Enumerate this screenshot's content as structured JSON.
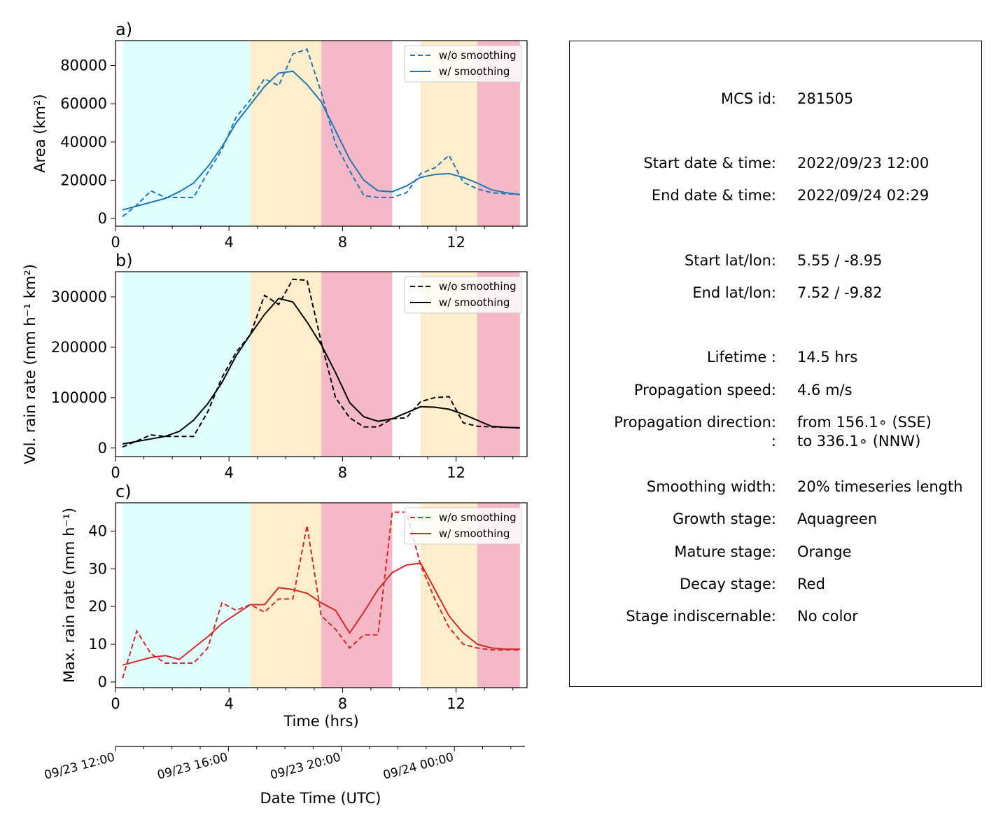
{
  "figure": {
    "bands": [
      {
        "start": 0.25,
        "end": 4.75,
        "stage": "growth"
      },
      {
        "start": 4.75,
        "end": 7.25,
        "stage": "mature"
      },
      {
        "start": 7.25,
        "end": 9.75,
        "stage": "decay"
      },
      {
        "start": 10.75,
        "end": 12.75,
        "stage": "mature"
      },
      {
        "start": 12.75,
        "end": 14.25,
        "stage": "decay"
      }
    ],
    "stage_colors": {
      "growth": "#e0ffff",
      "mature": "#ffeecc",
      "decay": "#f4b8c6"
    },
    "xlabel": "Time (hrs)",
    "date_axis": {
      "label": "Date Time (UTC)",
      "ticks": [
        {
          "t": 0,
          "label": "09/23 12:00"
        },
        {
          "t": 4,
          "label": "09/23 16:00"
        },
        {
          "t": 8,
          "label": "09/23 20:00"
        },
        {
          "t": 12,
          "label": "09/24 00:00"
        }
      ]
    }
  },
  "chart_data": [
    {
      "type": "line",
      "panel": "a)",
      "ylabel": "Area  (km²)",
      "xlim": [
        0,
        14.5
      ],
      "ylim": [
        -4000,
        93000
      ],
      "xticks": [
        0,
        4,
        8,
        12
      ],
      "yticks": [
        0,
        20000,
        40000,
        60000,
        80000
      ],
      "legend": "top-right",
      "color": "#1f77b4",
      "x": [
        0.25,
        0.75,
        1.25,
        1.75,
        2.25,
        2.75,
        3.25,
        3.75,
        4.25,
        4.75,
        5.25,
        5.75,
        6.25,
        6.75,
        7.25,
        7.75,
        8.25,
        8.75,
        9.25,
        9.75,
        10.25,
        10.75,
        11.25,
        11.75,
        12.25,
        12.75,
        13.25,
        13.75,
        14.25
      ],
      "series": [
        {
          "name": "w/o smoothing",
          "style": "dashed",
          "values": [
            1000,
            7000,
            14500,
            11000,
            11000,
            11000,
            24000,
            36000,
            53000,
            62000,
            73000,
            69500,
            86000,
            88500,
            66000,
            39000,
            25000,
            12000,
            11000,
            11000,
            13500,
            23500,
            26500,
            33000,
            19000,
            15500,
            13500,
            13000,
            12500
          ]
        },
        {
          "name": "w/ smoothing",
          "style": "solid",
          "values": [
            4500,
            6500,
            8500,
            10500,
            14000,
            18500,
            27000,
            37500,
            50000,
            59500,
            69000,
            76000,
            77000,
            70000,
            61000,
            46000,
            31000,
            20000,
            14500,
            14000,
            17000,
            21500,
            23000,
            23500,
            21500,
            18500,
            15000,
            13500,
            12500
          ]
        }
      ]
    },
    {
      "type": "line",
      "panel": "b)",
      "ylabel": "Vol. rain rate (mm h⁻¹ km²)",
      "xlim": [
        0,
        14.5
      ],
      "ylim": [
        -17000,
        350000
      ],
      "xticks": [
        0,
        4,
        8,
        12
      ],
      "yticks": [
        0,
        100000,
        200000,
        300000
      ],
      "legend": "top-right",
      "color": "#000000",
      "x": [
        0.25,
        0.75,
        1.25,
        1.75,
        2.25,
        2.75,
        3.25,
        3.75,
        4.25,
        4.75,
        5.25,
        5.75,
        6.25,
        6.75,
        7.25,
        7.75,
        8.25,
        8.75,
        9.25,
        9.75,
        10.25,
        10.75,
        11.25,
        11.75,
        12.25,
        12.75,
        13.25,
        13.75,
        14.25
      ],
      "series": [
        {
          "name": "w/o smoothing",
          "style": "dashed",
          "values": [
            2000,
            14000,
            26000,
            23000,
            23000,
            23000,
            72000,
            140000,
            190000,
            225000,
            303000,
            285000,
            335000,
            333000,
            210000,
            100000,
            60000,
            42000,
            42000,
            58000,
            60000,
            92000,
            100000,
            102000,
            50000,
            43000,
            42000,
            41000,
            40000
          ]
        },
        {
          "name": "w/ smoothing",
          "style": "solid",
          "values": [
            8000,
            13000,
            18000,
            23000,
            33000,
            55000,
            88000,
            130000,
            183000,
            225000,
            265000,
            297000,
            290000,
            250000,
            205000,
            150000,
            90000,
            62000,
            53000,
            58000,
            70000,
            82000,
            81000,
            77000,
            67000,
            55000,
            43000,
            41000,
            40000
          ]
        }
      ]
    },
    {
      "type": "line",
      "panel": "c)",
      "ylabel": "Max. rain rate  (mm h⁻¹)",
      "xlim": [
        0,
        14.5
      ],
      "ylim": [
        -1.5,
        47.5
      ],
      "xticks": [
        0,
        4,
        8,
        12
      ],
      "yticks": [
        0,
        10,
        20,
        30,
        40
      ],
      "legend": "top-right",
      "color": "#d62728",
      "x": [
        0.25,
        0.75,
        1.25,
        1.75,
        2.25,
        2.75,
        3.25,
        3.75,
        4.25,
        4.75,
        5.25,
        5.75,
        6.25,
        6.75,
        7.25,
        7.75,
        8.25,
        8.75,
        9.25,
        9.75,
        10.25,
        10.75,
        11.25,
        11.75,
        12.25,
        12.75,
        13.25,
        13.75,
        14.25
      ],
      "series": [
        {
          "name": "w/o smoothing",
          "style": "dashed",
          "values": [
            1,
            13.5,
            7.5,
            5,
            5,
            5,
            9,
            21,
            19,
            20.5,
            18.5,
            22,
            22,
            41.5,
            17.5,
            14,
            9,
            12.5,
            12.5,
            45,
            45,
            31,
            22,
            14.5,
            10,
            9,
            8.5,
            8.5,
            8.5
          ]
        },
        {
          "name": "w/ smoothing",
          "style": "solid",
          "values": [
            4.5,
            5.5,
            6.5,
            7,
            6,
            9,
            12,
            15.5,
            18,
            20.5,
            20.5,
            25,
            24.5,
            23.5,
            21,
            19,
            13,
            18.5,
            24.5,
            29,
            31,
            31.5,
            24.5,
            17.5,
            13,
            10,
            9,
            8.7,
            8.7
          ]
        }
      ]
    }
  ],
  "info": {
    "rows": [
      {
        "label": "MCS id:",
        "value": "281505"
      },
      {
        "label": "Start date & time:",
        "value": "2022/09/23 12:00"
      },
      {
        "label": "End date & time:",
        "value": "2022/09/24 02:29"
      },
      {
        "label": "Start lat/lon:",
        "value": "5.55 / -8.95"
      },
      {
        "label": "End lat/lon:",
        "value": "7.52 / -9.82"
      },
      {
        "label": "Lifetime :",
        "value": "14.5 hrs"
      },
      {
        "label": "Propagation speed:",
        "value": "4.6 m/s"
      },
      {
        "label": "Propagation direction:",
        "value": "from 156.1∘ (SSE)"
      },
      {
        "label": ":",
        "value": "to   336.1∘ (NNW)"
      },
      {
        "label": "Smoothing width:",
        "value": "20% timeseries length"
      },
      {
        "label": "Growth stage:",
        "value": "Aquagreen"
      },
      {
        "label": "Mature stage:",
        "value": "Orange"
      },
      {
        "label": "Decay stage:",
        "value": "Red"
      },
      {
        "label": "Stage indiscernable:",
        "value": "No color"
      }
    ]
  }
}
